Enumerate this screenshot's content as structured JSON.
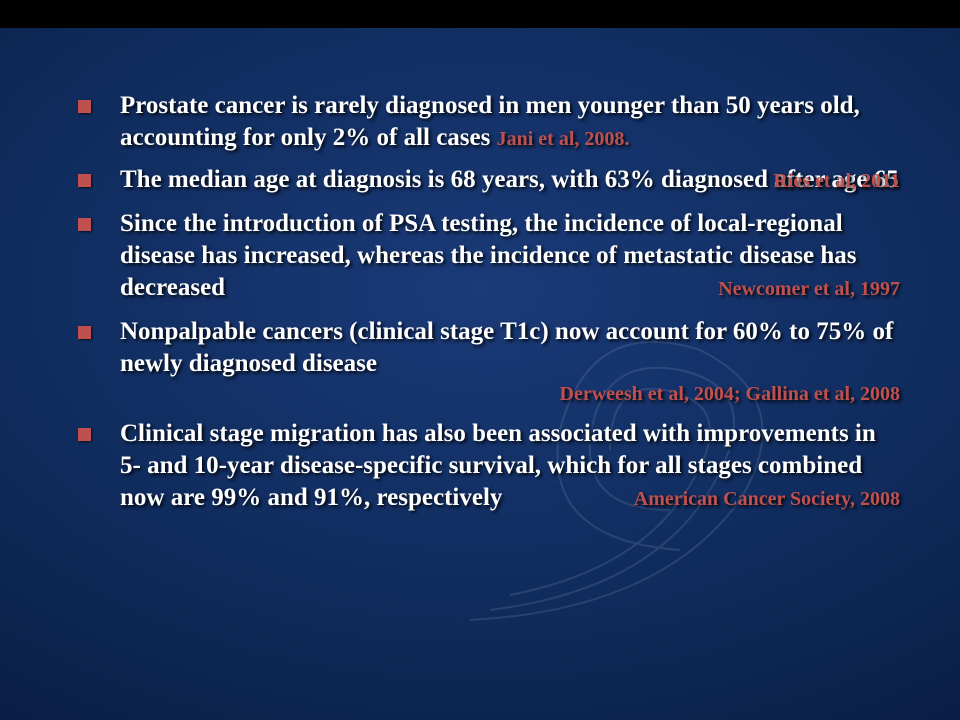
{
  "bullets": [
    {
      "text": "Prostate cancer is rarely diagnosed in men younger than 50 years old, accounting for only 2% of all cases",
      "cite": "Jani et al, 2008.",
      "cite_inline": true
    },
    {
      "text": " The median age at diagnosis is 68 years, with 63% diagnosed after age 65",
      "cite": "Ries et al, 2011",
      "cite_inline": false
    },
    {
      "text": "Since the introduction of PSA testing, the incidence of local-regional disease has increased, whereas the incidence of metastatic disease has decreased",
      "cite": "Newcomer et al, 1997",
      "cite_inline": false
    },
    {
      "text": "Nonpalpable cancers (clinical stage T1c) now account for 60% to 75% of newly diagnosed disease",
      "cite": "Derweesh et al, 2004; Gallina et al, 2008",
      "cite_inline": false,
      "cite_below": true
    },
    {
      "text": "Clinical stage migration has also been associated with improvements in 5- and 10-year disease-specific survival, which for all stages combined now are 99% and 91%, respectively",
      "cite": "American Cancer Society, 2008",
      "cite_inline": false
    }
  ],
  "colors": {
    "bullet_marker": "#c0504d",
    "citation": "#c0504d",
    "text": "#ffffff"
  }
}
